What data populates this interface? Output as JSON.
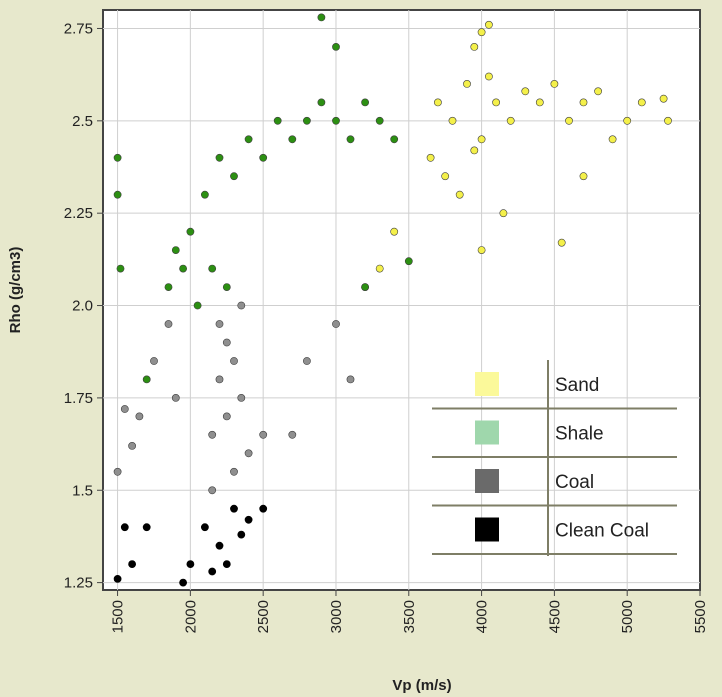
{
  "chart_data": {
    "type": "scatter",
    "xlabel": "Vp  (m/s)",
    "ylabel": "Rho  (g/cm3)",
    "xlim": [
      1400,
      5500
    ],
    "ylim": [
      1.23,
      2.8
    ],
    "x_ticks": [
      "1500",
      "2000",
      "2500",
      "3000",
      "3500",
      "4000",
      "4500",
      "5000",
      "5500"
    ],
    "x_tick_values": [
      1500,
      2000,
      2500,
      3000,
      3500,
      4000,
      4500,
      5000,
      5500
    ],
    "y_ticks": [
      "1.25",
      "1.5",
      "1.75",
      "2.0",
      "2.25",
      "2.5",
      "2.75"
    ],
    "y_tick_values": [
      1.25,
      1.5,
      1.75,
      2.0,
      2.25,
      2.5,
      2.75
    ],
    "grid": true,
    "legend_position": "bottom-right",
    "series": [
      {
        "name": "Sand",
        "color": "#f4f04a",
        "legend_color": "#fbf99a",
        "points": [
          [
            3700,
            2.55
          ],
          [
            3800,
            2.5
          ],
          [
            3900,
            2.6
          ],
          [
            4000,
            2.45
          ],
          [
            4100,
            2.55
          ],
          [
            3650,
            2.4
          ],
          [
            3750,
            2.35
          ],
          [
            3850,
            2.3
          ],
          [
            3950,
            2.42
          ],
          [
            4050,
            2.62
          ],
          [
            4200,
            2.5
          ],
          [
            4300,
            2.58
          ],
          [
            4400,
            2.55
          ],
          [
            4500,
            2.6
          ],
          [
            4600,
            2.5
          ],
          [
            4700,
            2.55
          ],
          [
            4800,
            2.58
          ],
          [
            4900,
            2.45
          ],
          [
            5000,
            2.5
          ],
          [
            5100,
            2.55
          ],
          [
            5250,
            2.56
          ],
          [
            5280,
            2.5
          ],
          [
            4000,
            2.74
          ],
          [
            4050,
            2.76
          ],
          [
            3950,
            2.7
          ],
          [
            4150,
            2.25
          ],
          [
            4000,
            2.15
          ],
          [
            4550,
            2.17
          ],
          [
            4700,
            2.35
          ],
          [
            3300,
            2.1
          ],
          [
            3200,
            2.05
          ],
          [
            3400,
            2.2
          ]
        ]
      },
      {
        "name": "Shale",
        "color": "#2c8f12",
        "legend_color": "#9fd7ac",
        "points": [
          [
            2000,
            2.2
          ],
          [
            2100,
            2.3
          ],
          [
            2200,
            2.4
          ],
          [
            2300,
            2.35
          ],
          [
            2400,
            2.45
          ],
          [
            2500,
            2.4
          ],
          [
            2600,
            2.5
          ],
          [
            2700,
            2.45
          ],
          [
            2800,
            2.5
          ],
          [
            2900,
            2.55
          ],
          [
            3000,
            2.5
          ],
          [
            3100,
            2.45
          ],
          [
            3200,
            2.55
          ],
          [
            3300,
            2.5
          ],
          [
            3400,
            2.45
          ],
          [
            1900,
            2.15
          ],
          [
            1850,
            2.05
          ],
          [
            1950,
            2.1
          ],
          [
            2050,
            2.0
          ],
          [
            2150,
            2.1
          ],
          [
            2250,
            2.05
          ],
          [
            1500,
            2.4
          ],
          [
            1500,
            2.3
          ],
          [
            1520,
            2.1
          ],
          [
            3000,
            2.7
          ],
          [
            2900,
            2.78
          ],
          [
            3200,
            2.05
          ],
          [
            3500,
            2.12
          ],
          [
            1700,
            1.8
          ]
        ]
      },
      {
        "name": "Coal",
        "color": "#8f8f8f",
        "legend_color": "#6a6a6a",
        "points": [
          [
            2200,
            1.8
          ],
          [
            2300,
            1.85
          ],
          [
            2250,
            1.7
          ],
          [
            2350,
            1.75
          ],
          [
            2150,
            1.65
          ],
          [
            2400,
            1.6
          ],
          [
            2300,
            1.55
          ],
          [
            2250,
            1.9
          ],
          [
            2200,
            1.95
          ],
          [
            2350,
            2.0
          ],
          [
            1850,
            1.95
          ],
          [
            1750,
            1.85
          ],
          [
            1900,
            1.75
          ],
          [
            1650,
            1.7
          ],
          [
            1550,
            1.72
          ],
          [
            1600,
            1.62
          ],
          [
            1500,
            1.55
          ],
          [
            2500,
            1.65
          ],
          [
            2700,
            1.65
          ],
          [
            2800,
            1.85
          ],
          [
            3000,
            1.95
          ],
          [
            3100,
            1.8
          ],
          [
            2150,
            1.5
          ]
        ]
      },
      {
        "name": "Clean Coal",
        "color": "#000000",
        "legend_color": "#000000",
        "points": [
          [
            2100,
            1.4
          ],
          [
            2200,
            1.35
          ],
          [
            2300,
            1.45
          ],
          [
            2250,
            1.3
          ],
          [
            2150,
            1.28
          ],
          [
            2350,
            1.38
          ],
          [
            2400,
            1.42
          ],
          [
            2000,
            1.3
          ],
          [
            1950,
            1.25
          ],
          [
            2500,
            1.45
          ],
          [
            1600,
            1.3
          ],
          [
            1550,
            1.4
          ],
          [
            1500,
            1.26
          ],
          [
            1700,
            1.4
          ]
        ]
      }
    ]
  }
}
